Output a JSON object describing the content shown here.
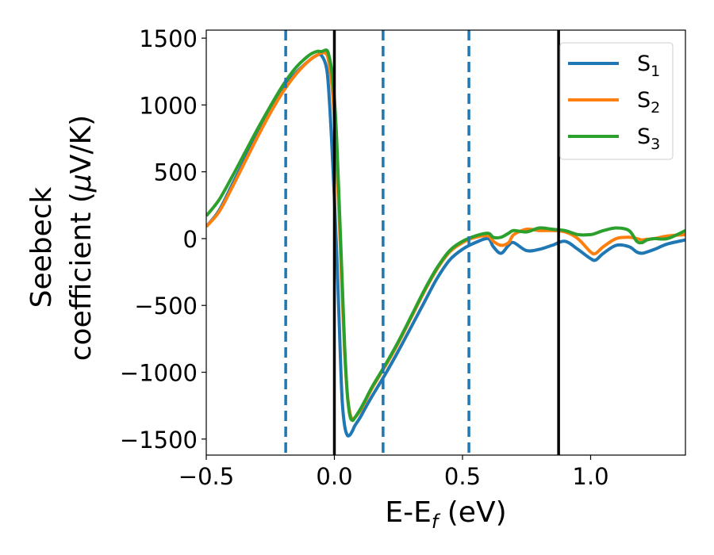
{
  "chart_data": {
    "type": "line",
    "xlabel": {
      "main": "E-E",
      "sub": "f",
      "unit": " (eV)"
    },
    "ylabel": {
      "line1": "Seebeck",
      "line2": "coefficient  (",
      "mu": "μ",
      "unit": "V/K)"
    },
    "xlim": [
      -0.5,
      1.37
    ],
    "ylim": [
      -1620,
      1560
    ],
    "xticks": [
      -0.5,
      0.0,
      0.5,
      1.0
    ],
    "xtick_labels": [
      "−0.5",
      "0.0",
      "0.5",
      "1.0"
    ],
    "yticks": [
      1500,
      1000,
      500,
      0,
      -500,
      -1000,
      -1500
    ],
    "ytick_labels": [
      "1500",
      "1000",
      "500",
      "0",
      "−500",
      "−1000",
      "−1500"
    ],
    "grid": false,
    "legend_position": "top-right",
    "vlines_solid": [
      0.0,
      0.875
    ],
    "vlines_dashed": [
      -0.19,
      0.19,
      0.525
    ],
    "series": [
      {
        "name": "S",
        "sub": "1",
        "color": "#1f77b4",
        "x": [
          -0.5,
          -0.45,
          -0.4,
          -0.35,
          -0.3,
          -0.25,
          -0.2,
          -0.15,
          -0.1,
          -0.07,
          -0.05,
          -0.03,
          -0.02,
          -0.01,
          0.0,
          0.01,
          0.02,
          0.03,
          0.04,
          0.05,
          0.06,
          0.07,
          0.08,
          0.1,
          0.12,
          0.15,
          0.2,
          0.25,
          0.3,
          0.35,
          0.4,
          0.45,
          0.5,
          0.55,
          0.6,
          0.62,
          0.65,
          0.68,
          0.7,
          0.75,
          0.8,
          0.85,
          0.9,
          0.95,
          1.0,
          1.02,
          1.05,
          1.1,
          1.15,
          1.18,
          1.2,
          1.22,
          1.25,
          1.3,
          1.37
        ],
        "y": [
          90,
          210,
          400,
          590,
          780,
          960,
          1120,
          1240,
          1330,
          1370,
          1370,
          1270,
          1050,
          700,
          300,
          -150,
          -700,
          -1200,
          -1400,
          -1470,
          -1470,
          -1440,
          -1400,
          -1340,
          -1270,
          -1170,
          -1010,
          -840,
          -660,
          -480,
          -300,
          -160,
          -80,
          -30,
          0,
          -60,
          -110,
          -50,
          -30,
          -90,
          -80,
          -50,
          -20,
          -80,
          -150,
          -160,
          -110,
          -50,
          -60,
          -100,
          -110,
          -100,
          -80,
          -40,
          -10
        ]
      },
      {
        "name": "S",
        "sub": "2",
        "color": "#ff7f0e",
        "x": [
          -0.5,
          -0.45,
          -0.4,
          -0.35,
          -0.3,
          -0.25,
          -0.2,
          -0.15,
          -0.1,
          -0.07,
          -0.05,
          -0.03,
          -0.02,
          -0.01,
          0.0,
          0.01,
          0.02,
          0.03,
          0.04,
          0.05,
          0.06,
          0.07,
          0.08,
          0.1,
          0.12,
          0.15,
          0.2,
          0.25,
          0.3,
          0.35,
          0.4,
          0.45,
          0.5,
          0.55,
          0.6,
          0.62,
          0.65,
          0.68,
          0.7,
          0.75,
          0.8,
          0.85,
          0.9,
          0.95,
          1.0,
          1.02,
          1.05,
          1.1,
          1.15,
          1.18,
          1.2,
          1.22,
          1.25,
          1.3,
          1.37
        ],
        "y": [
          90,
          200,
          380,
          570,
          760,
          940,
          1100,
          1230,
          1330,
          1370,
          1390,
          1380,
          1300,
          1150,
          900,
          550,
          100,
          -400,
          -850,
          -1150,
          -1300,
          -1350,
          -1340,
          -1290,
          -1220,
          -1110,
          -950,
          -780,
          -590,
          -400,
          -230,
          -100,
          -30,
          10,
          20,
          -20,
          -50,
          -30,
          30,
          70,
          60,
          60,
          50,
          0,
          -100,
          -110,
          -60,
          0,
          10,
          0,
          -10,
          -5,
          0,
          20,
          30
        ]
      },
      {
        "name": "S",
        "sub": "3",
        "color": "#2ca02c",
        "x": [
          -0.5,
          -0.45,
          -0.4,
          -0.35,
          -0.3,
          -0.25,
          -0.2,
          -0.15,
          -0.1,
          -0.07,
          -0.05,
          -0.03,
          -0.02,
          -0.01,
          0.0,
          0.01,
          0.02,
          0.03,
          0.04,
          0.05,
          0.06,
          0.07,
          0.08,
          0.1,
          0.12,
          0.15,
          0.2,
          0.25,
          0.3,
          0.35,
          0.4,
          0.45,
          0.5,
          0.55,
          0.6,
          0.62,
          0.65,
          0.68,
          0.7,
          0.75,
          0.8,
          0.85,
          0.9,
          0.95,
          1.0,
          1.02,
          1.05,
          1.1,
          1.15,
          1.18,
          1.2,
          1.22,
          1.25,
          1.3,
          1.37
        ],
        "y": [
          170,
          290,
          460,
          640,
          820,
          990,
          1150,
          1280,
          1370,
          1400,
          1400,
          1410,
          1360,
          1250,
          1050,
          700,
          200,
          -300,
          -800,
          -1150,
          -1320,
          -1360,
          -1340,
          -1280,
          -1210,
          -1100,
          -940,
          -770,
          -580,
          -390,
          -220,
          -90,
          -20,
          20,
          40,
          10,
          10,
          40,
          60,
          50,
          80,
          70,
          60,
          30,
          30,
          40,
          60,
          80,
          60,
          -20,
          -30,
          -10,
          0,
          0,
          60
        ]
      }
    ]
  }
}
